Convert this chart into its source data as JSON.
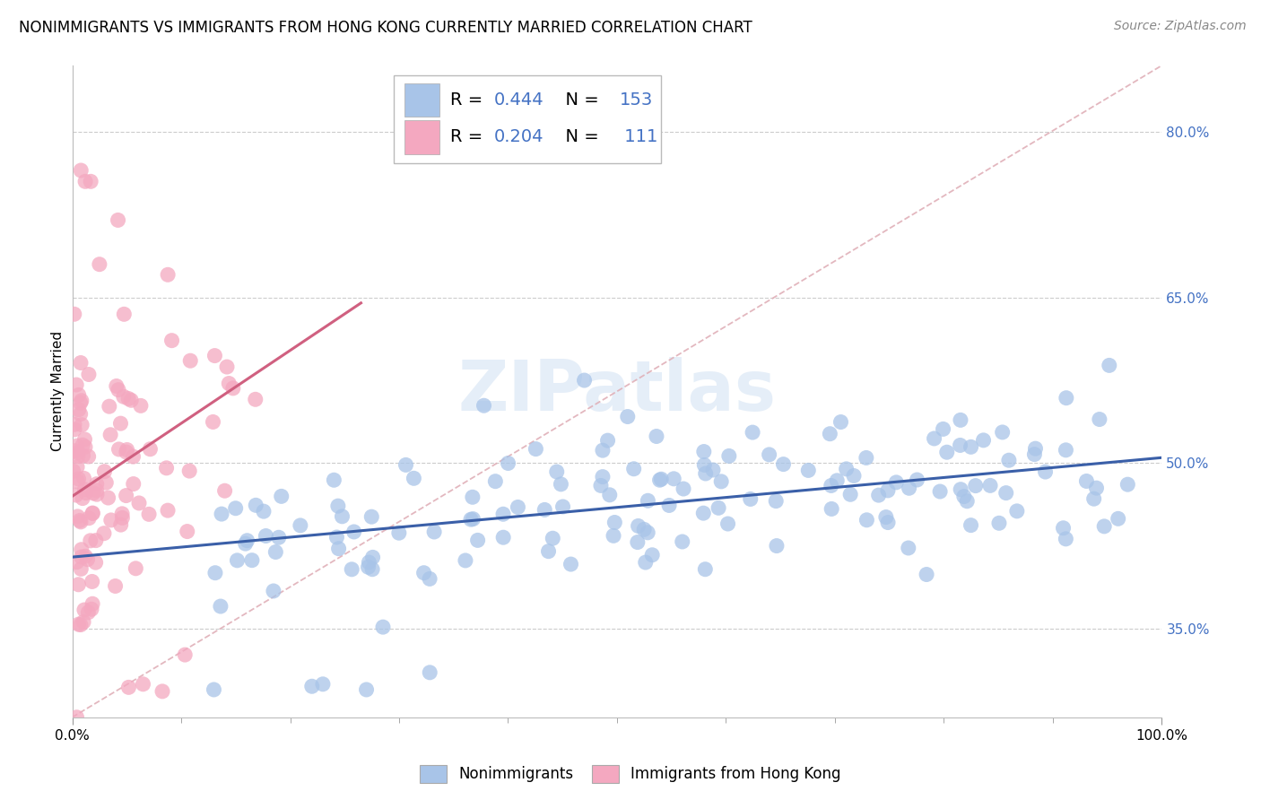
{
  "title": "NONIMMIGRANTS VS IMMIGRANTS FROM HONG KONG CURRENTLY MARRIED CORRELATION CHART",
  "source": "Source: ZipAtlas.com",
  "ylabel": "Currently Married",
  "R_blue": 0.444,
  "N_blue": 153,
  "R_pink": 0.204,
  "N_pink": 111,
  "blue_scatter_color": "#a8c4e8",
  "pink_scatter_color": "#f4a8c0",
  "blue_line_color": "#3a5fa8",
  "pink_line_color": "#d06080",
  "diagonal_color": "#e0b0b8",
  "watermark": "ZIPatlas",
  "ytick_labels": [
    "35.0%",
    "50.0%",
    "65.0%",
    "80.0%"
  ],
  "ytick_values": [
    0.35,
    0.5,
    0.65,
    0.8
  ],
  "xlim": [
    0.0,
    1.0
  ],
  "ylim": [
    0.27,
    0.86
  ],
  "blue_line_start_x": 0.0,
  "blue_line_start_y": 0.415,
  "blue_line_end_x": 1.0,
  "blue_line_end_y": 0.505,
  "pink_line_start_x": 0.0,
  "pink_line_start_y": 0.47,
  "pink_line_end_x": 0.265,
  "pink_line_end_y": 0.645,
  "title_fontsize": 12,
  "source_fontsize": 10,
  "tick_fontsize": 11,
  "legend_fontsize": 13,
  "legend_R_N_color": "#4472c4"
}
